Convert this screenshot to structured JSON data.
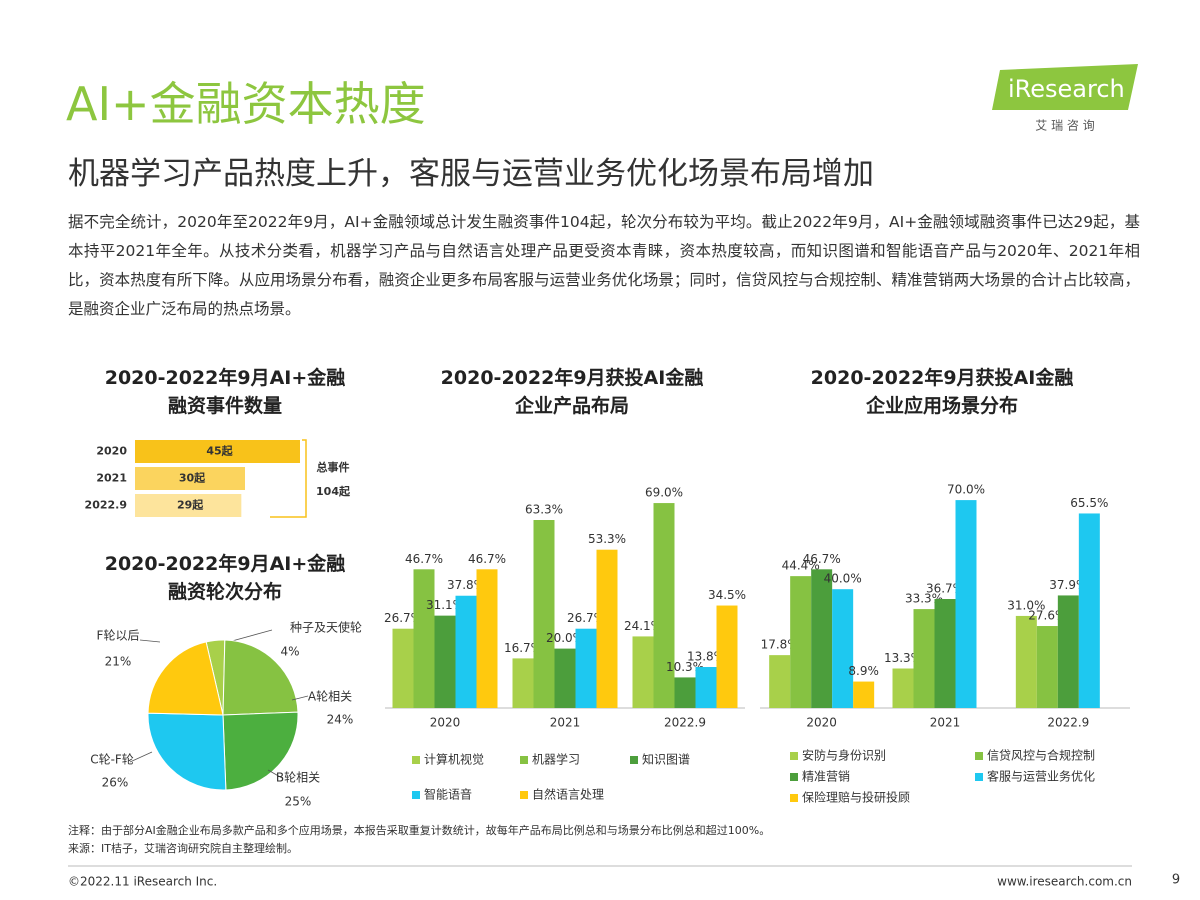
{
  "header": {
    "title": "AI+金融资本热度",
    "subtitle": "机器学习产品热度上升，客服与运营业务优化场景布局增加",
    "logo": "iResearch",
    "logo_sub": "艾 瑞 咨 询"
  },
  "body": "据不完全统计，2020年至2022年9月，AI+金融领域总计发生融资事件104起，轮次分布较为平均。截止2022年9月，AI+金融领域融资事件已达29起，基本持平2021年全年。从技术分类看，机器学习产品与自然语言处理产品更受资本青睐，资本热度较高，而知识图谱和智能语音产品与2020年、2021年相比，资本热度有所下降。从应用场景分布看，融资企业更多布局客服与运营业务优化场景；同时，信贷风控与合规控制、精准营销两大场景的合计占比较高，是融资企业广泛布局的热点场景。",
  "chart_data": [
    {
      "type": "hbar",
      "title": "2020-2022年9月AI+金融\n融资事件数量",
      "categories": [
        "2020",
        "2021",
        "2022.9"
      ],
      "values": [
        45,
        30,
        29
      ],
      "value_labels": [
        "45起",
        "30起",
        "29起"
      ],
      "colors": [
        "#f8c21a",
        "#fbd45e",
        "#fde49c"
      ],
      "annotation": [
        "总事件",
        "104起"
      ]
    },
    {
      "type": "pie",
      "title": "2020-2022年9月AI+金融\n融资轮次分布",
      "categories": [
        "种子及天使轮",
        "A轮相关",
        "B轮相关",
        "C轮-F轮",
        "F轮以后"
      ],
      "values": [
        4,
        24,
        25,
        26,
        21
      ],
      "value_labels": [
        "4%",
        "24%",
        "25%",
        "26%",
        "21%"
      ],
      "colors": [
        "#a8d04a",
        "#86c242",
        "#4caf3f",
        "#1ec8f0",
        "#ffc90e"
      ]
    },
    {
      "type": "bar",
      "title": "2020-2022年9月获投AI金融\n企业产品布局",
      "categories": [
        "2020",
        "2021",
        "2022.9"
      ],
      "series": [
        {
          "name": "计算机视觉",
          "color": "#a8d04a",
          "values": [
            26.7,
            16.7,
            24.1
          ],
          "value_labels": [
            "26.7%",
            "16.7%",
            "24.1%"
          ]
        },
        {
          "name": "机器学习",
          "color": "#86c242",
          "values": [
            46.7,
            63.3,
            69.0
          ],
          "value_labels": [
            "46.7%",
            "63.3%",
            "69.0%"
          ]
        },
        {
          "name": "知识图谱",
          "color": "#4c9e3c",
          "values": [
            31.1,
            20.0,
            10.3
          ],
          "value_labels": [
            "31.1%",
            "20.0%",
            "10.3%"
          ]
        },
        {
          "name": "智能语音",
          "color": "#1ec8f0",
          "values": [
            37.8,
            26.7,
            13.8
          ],
          "value_labels": [
            "37.8%",
            "26.7%",
            "13.8%"
          ]
        },
        {
          "name": "自然语言处理",
          "color": "#ffc90e",
          "values": [
            46.7,
            53.3,
            34.5
          ],
          "value_labels": [
            "46.7%",
            "53.3%",
            "34.5%"
          ]
        }
      ]
    },
    {
      "type": "bar",
      "title": "2020-2022年9月获投AI金融\n企业应用场景分布",
      "categories": [
        "2020",
        "2021",
        "2022.9"
      ],
      "series": [
        {
          "name": "安防与身份识别",
          "color": "#a8d04a",
          "values": [
            17.8,
            13.3,
            31.0
          ],
          "value_labels": [
            "17.8%",
            "13.3%",
            "31.0%"
          ]
        },
        {
          "name": "信贷风控与合规控制",
          "color": "#86c242",
          "values": [
            44.4,
            33.3,
            27.6
          ],
          "value_labels": [
            "44.4%",
            "33.3%",
            "27.6%"
          ]
        },
        {
          "name": "精准营销",
          "color": "#4c9e3c",
          "values": [
            46.7,
            36.7,
            37.9
          ],
          "value_labels": [
            "46.7%",
            "36.7%",
            "37.9%"
          ]
        },
        {
          "name": "客服与运营业务优化",
          "color": "#1ec8f0",
          "values": [
            40.0,
            70.0,
            65.5
          ],
          "value_labels": [
            "40.0%",
            "70.0%",
            "65.5%"
          ]
        },
        {
          "name": "保险理赔与投研投顾",
          "color": "#ffc90e",
          "values": [
            8.9,
            null,
            null
          ],
          "value_labels": [
            "8.9%",
            null,
            null
          ]
        }
      ]
    }
  ],
  "notes": [
    "注释：由于部分AI金融企业布局多款产品和多个应用场景，本报告采取重复计数统计，故每年产品布局比例总和与场景分布比例总和超过100%。",
    "来源：IT桔子，艾瑞咨询研究院自主整理绘制。"
  ],
  "footer": {
    "copyright": "©2022.11 iResearch Inc.",
    "site": "www.iresearch.com.cn",
    "page": "9"
  }
}
